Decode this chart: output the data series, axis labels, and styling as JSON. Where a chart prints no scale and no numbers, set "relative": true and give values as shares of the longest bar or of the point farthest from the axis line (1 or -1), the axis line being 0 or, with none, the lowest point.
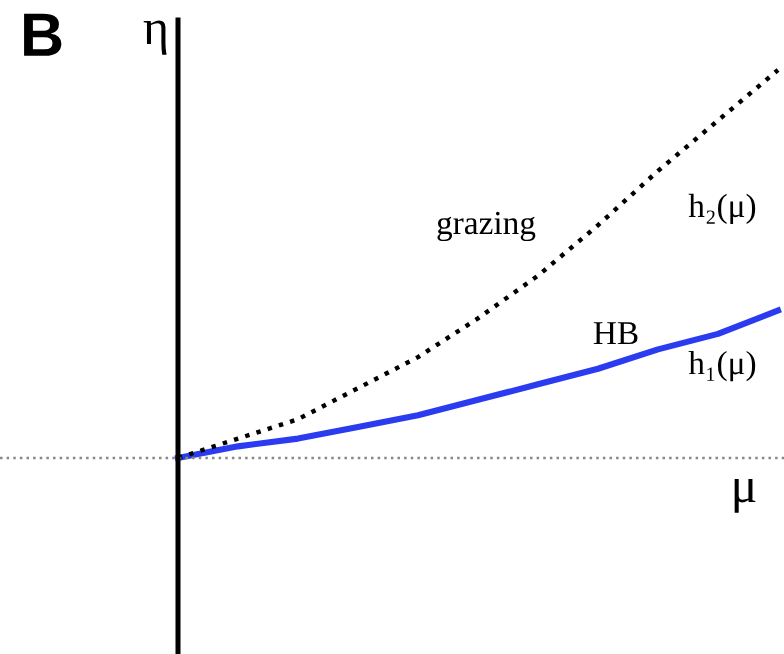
{
  "chart_data": {
    "type": "line",
    "title": "B",
    "xlabel": "μ",
    "ylabel": "η",
    "relative": true,
    "legend": false,
    "marker": "none",
    "categories": [
      null,
      null,
      null,
      null,
      null,
      null,
      null,
      null,
      null,
      null,
      null
    ],
    "series": [
      {
        "name": "h₁(μ)",
        "color": "#2b3cf0",
        "line_style": "solid",
        "values": [
          0,
          0.03,
          0.05,
          0.08,
          0.11,
          0.15,
          0.19,
          0.23,
          0.28,
          0.32,
          0.38
        ]
      },
      {
        "name": "h₂(μ)",
        "color": "#000000",
        "line_style": "dotted",
        "values": [
          0,
          0.05,
          0.1,
          0.18,
          0.26,
          0.36,
          0.47,
          0.6,
          0.74,
          0.87,
          1
        ]
      }
    ],
    "ref_lines": [
      {
        "axis": "y",
        "value": 0,
        "color": "#888888",
        "line_style": "dotted"
      }
    ],
    "annotations": [
      "grazing",
      "HB"
    ]
  }
}
